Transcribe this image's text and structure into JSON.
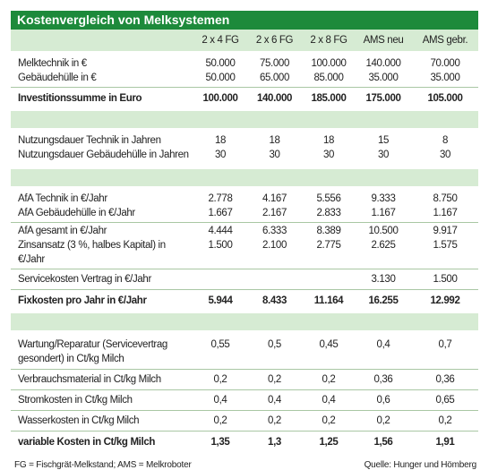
{
  "title": "Kostenvergleich von Melksystemen",
  "columns": [
    "2 x 4 FG",
    "2 x 6 FG",
    "2 x 8 FG",
    "AMS neu",
    "AMS gebr."
  ],
  "groups": [
    {
      "blocks": [
        [
          {
            "label": "Melktechnik in €",
            "values": [
              "50.000",
              "75.000",
              "100.000",
              "140.000",
              "70.000"
            ]
          },
          {
            "label": "Gebäudehülle in €",
            "values": [
              "50.000",
              "65.000",
              "85.000",
              "35.000",
              "35.000"
            ]
          }
        ]
      ],
      "total": {
        "label": "Investitionssumme in Euro",
        "values": [
          "100.000",
          "140.000",
          "185.000",
          "175.000",
          "105.000"
        ]
      }
    },
    {
      "blocks": [
        [
          {
            "label": "Nutzungsdauer Technik in Jahren",
            "values": [
              "18",
              "18",
              "18",
              "15",
              "8"
            ]
          },
          {
            "label": "Nutzungsdauer Gebäudehülle in Jahren",
            "values": [
              "30",
              "30",
              "30",
              "30",
              "30"
            ]
          }
        ]
      ]
    },
    {
      "blocks": [
        [
          {
            "label": "AfA Technik in €/Jahr",
            "values": [
              "2.778",
              "4.167",
              "5.556",
              "9.333",
              "8.750"
            ]
          },
          {
            "label": "AfA Gebäudehülle in €/Jahr",
            "values": [
              "1.667",
              "2.167",
              "2.833",
              "1.167",
              "1.167"
            ]
          }
        ],
        [
          {
            "label": "AfA gesamt in €/Jahr",
            "values": [
              "4.444",
              "6.333",
              "8.389",
              "10.500",
              "9.917"
            ]
          },
          {
            "label": "Zinsansatz (3 %, halbes Kapital) in €/Jahr",
            "values": [
              "1.500",
              "2.100",
              "2.775",
              "2.625",
              "1.575"
            ]
          }
        ],
        [
          {
            "label": "Servicekosten Vertrag in €/Jahr",
            "values": [
              null,
              null,
              null,
              "3.130",
              "1.500"
            ]
          }
        ]
      ],
      "total": {
        "label": "Fixkosten pro Jahr in €/Jahr",
        "values": [
          "5.944",
          "8.433",
          "11.164",
          "16.255",
          "12.992"
        ]
      }
    },
    {
      "blocks": [
        [
          {
            "label": "Wartung/Reparatur (Servicevertrag gesondert) in Ct/kg Milch",
            "values": [
              "0,55",
              "0,5",
              "0,45",
              "0,4",
              "0,7"
            ]
          }
        ],
        [
          {
            "label": "Verbrauchsmaterial in Ct/kg Milch",
            "values": [
              "0,2",
              "0,2",
              "0,2",
              "0,36",
              "0,36"
            ]
          }
        ],
        [
          {
            "label": "Stromkosten in Ct/kg Milch",
            "values": [
              "0,4",
              "0,4",
              "0,4",
              "0,6",
              "0,65"
            ]
          }
        ],
        [
          {
            "label": "Wasserkosten in Ct/kg Milch",
            "values": [
              "0,2",
              "0,2",
              "0,2",
              "0,2",
              "0,2"
            ]
          }
        ]
      ],
      "total": {
        "label": "variable Kosten in Ct/kg Milch",
        "values": [
          "1,35",
          "1,3",
          "1,25",
          "1,56",
          "1,91"
        ]
      }
    }
  ],
  "footer": {
    "note": "FG = Fischgrät-Melkstand; AMS = Melkroboter",
    "source": "Quelle: Hunger und Hömberg"
  }
}
